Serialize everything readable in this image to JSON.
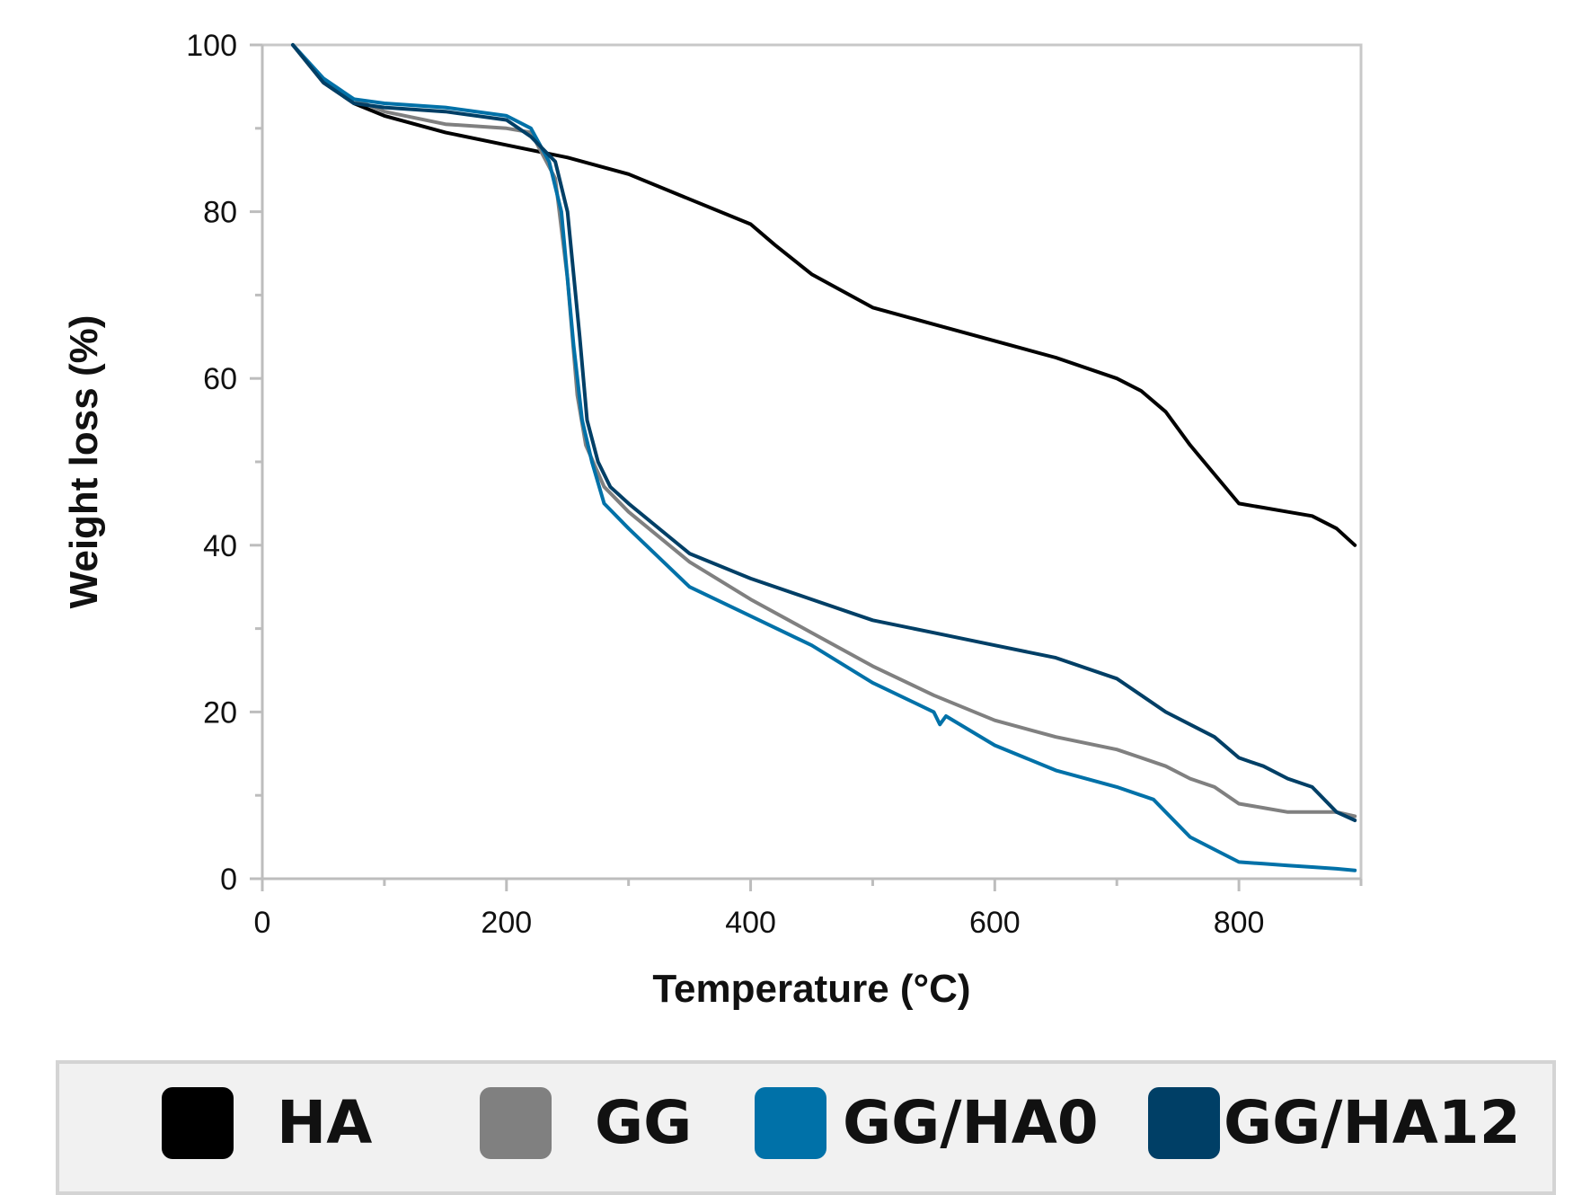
{
  "chart_data": {
    "type": "line",
    "title": "",
    "xlabel": "Temperature (°C)",
    "ylabel": "Weight loss (%)",
    "xlim": [
      0,
      900
    ],
    "ylim": [
      0,
      100
    ],
    "xticks": [
      0,
      200,
      400,
      600,
      800
    ],
    "yticks": [
      0,
      20,
      40,
      60,
      80,
      100
    ],
    "x_minor_step": 100,
    "y_minor_step": 10,
    "grid": false,
    "legend_position": "bottom",
    "series": [
      {
        "name": "HA",
        "color": "#000000",
        "x": [
          25,
          50,
          75,
          100,
          150,
          200,
          250,
          300,
          350,
          400,
          420,
          450,
          500,
          550,
          600,
          650,
          700,
          720,
          740,
          760,
          780,
          800,
          820,
          840,
          860,
          880,
          895
        ],
        "y": [
          100,
          95.5,
          93,
          91.5,
          89.5,
          88,
          86.5,
          84.5,
          81.5,
          78.5,
          76,
          72.5,
          68.5,
          66.5,
          64.5,
          62.5,
          60,
          58.5,
          56,
          52,
          48.5,
          45,
          44.5,
          44,
          43.5,
          42,
          40
        ]
      },
      {
        "name": "GG",
        "color": "#808080",
        "x": [
          25,
          50,
          75,
          100,
          150,
          200,
          220,
          240,
          250,
          258,
          265,
          280,
          300,
          350,
          400,
          450,
          500,
          550,
          600,
          650,
          700,
          720,
          740,
          760,
          780,
          800,
          820,
          840,
          860,
          880,
          895
        ],
        "y": [
          100,
          95.5,
          93.5,
          92,
          90.5,
          90,
          89.5,
          84,
          72,
          58,
          52,
          47,
          44,
          38,
          33.5,
          29.5,
          25.5,
          22,
          19,
          17,
          15.5,
          14.5,
          13.5,
          12,
          11,
          9,
          8.5,
          8,
          8,
          8,
          7.5
        ]
      },
      {
        "name": "GG/HA0",
        "color": "#0071A8",
        "x": [
          25,
          50,
          75,
          100,
          150,
          200,
          220,
          235,
          245,
          255,
          262,
          270,
          280,
          300,
          350,
          400,
          450,
          500,
          550,
          555,
          560,
          600,
          650,
          700,
          720,
          730,
          740,
          760,
          780,
          800,
          820,
          840,
          860,
          880,
          895
        ],
        "y": [
          100,
          96,
          93.5,
          93,
          92.5,
          91.5,
          90,
          86,
          80,
          64,
          55,
          50,
          45,
          42,
          35,
          31.5,
          28,
          23.5,
          20,
          18.5,
          19.5,
          16,
          13,
          11,
          10,
          9.5,
          8,
          5,
          3.5,
          2,
          1.8,
          1.6,
          1.4,
          1.2,
          1
        ]
      },
      {
        "name": "GG/HA12",
        "color": "#003F66",
        "x": [
          25,
          50,
          75,
          100,
          150,
          200,
          220,
          240,
          250,
          260,
          266,
          275,
          285,
          300,
          350,
          400,
          450,
          500,
          550,
          600,
          650,
          700,
          720,
          740,
          760,
          780,
          800,
          810,
          820,
          840,
          860,
          880,
          895
        ],
        "y": [
          100,
          95.5,
          93,
          92.5,
          92,
          91,
          89,
          86,
          80,
          65,
          55,
          50,
          47,
          45,
          39,
          36,
          33.5,
          31,
          29.5,
          28,
          26.5,
          24,
          22,
          20,
          18.5,
          17,
          14.5,
          14,
          13.5,
          12,
          11,
          8,
          7
        ]
      }
    ]
  }
}
